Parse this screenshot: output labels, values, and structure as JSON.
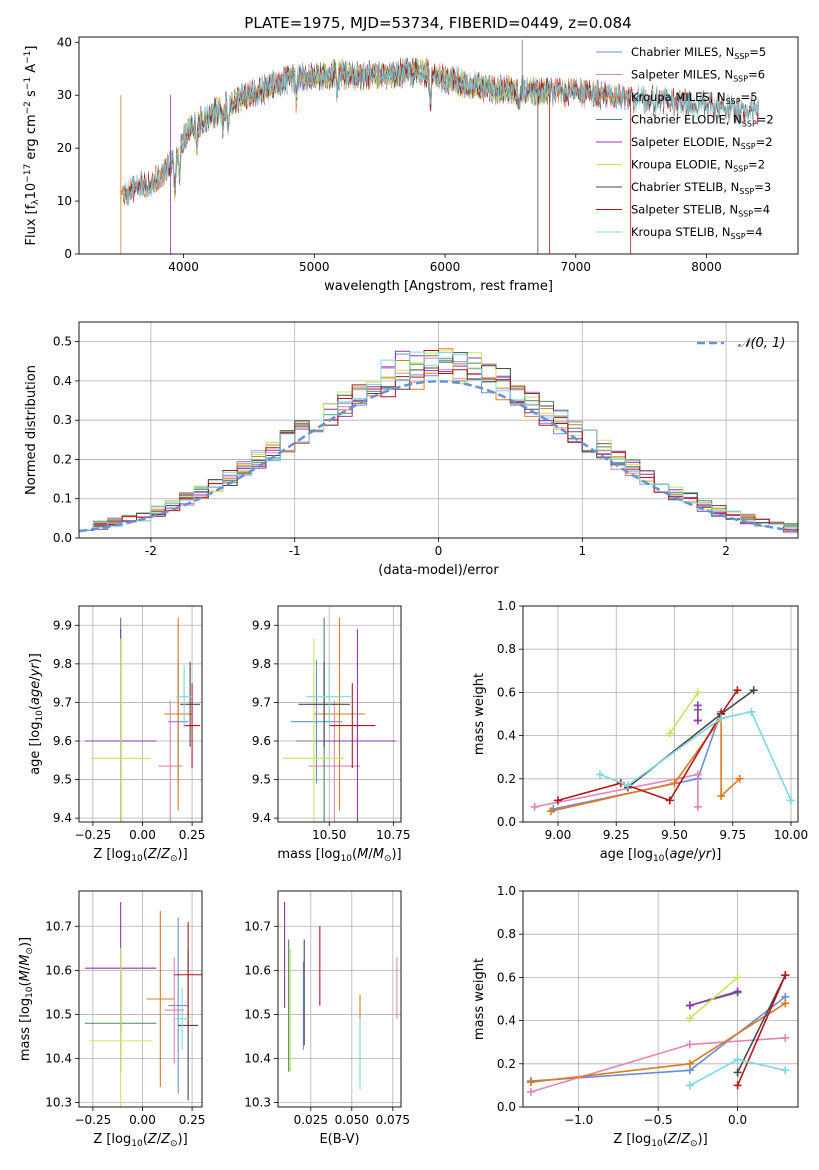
{
  "figure": {
    "title": "PLATE=1975, MJD=53734, FIBERID=0449, z=0.084"
  },
  "colors": {
    "Chabrier MILES": "#6b8fd6",
    "Salpeter MILES": "#e184b8",
    "Kroupa MILES": "#e0781e",
    "Chabrier ELODIE": "#4f8a58",
    "Salpeter ELODIE": "#8e37b0",
    "Kroupa ELODIE": "#c9e55c",
    "Chabrier STELIB": "#4a4a4a",
    "Salpeter STELIB": "#b4171b",
    "Kroupa STELIB": "#7dd8e0"
  },
  "chart_data": [
    {
      "id": "spectrum",
      "type": "line",
      "title": "PLATE=1975, MJD=53734, FIBERID=0449, z=0.084",
      "xlabel": "wavelength [Angstrom, rest frame]",
      "ylabel": "Flux [f_λ10^-17 erg cm^-2 s^-1 A^-1]",
      "xlim": [
        3200,
        8700
      ],
      "ylim": [
        0,
        41
      ],
      "xticks": [
        4000,
        5000,
        6000,
        7000,
        8000
      ],
      "yticks": [
        0,
        10,
        20,
        30,
        40
      ],
      "grid": false,
      "legend_position": "top-right",
      "legend": [
        {
          "name": "Chabrier MILES",
          "nssp": "5"
        },
        {
          "name": "Salpeter MILES",
          "nssp": "6"
        },
        {
          "name": "Kroupa MILES",
          "nssp": "5"
        },
        {
          "name": "Chabrier ELODIE",
          "nssp": "2"
        },
        {
          "name": "Salpeter ELODIE",
          "nssp": "2"
        },
        {
          "name": "Kroupa ELODIE",
          "nssp": "2"
        },
        {
          "name": "Chabrier STELIB",
          "nssp": "3"
        },
        {
          "name": "Salpeter STELIB",
          "nssp": "4"
        },
        {
          "name": "Kroupa STELIB",
          "nssp": "4"
        }
      ],
      "continuum": {
        "wavelength": [
          3500,
          3700,
          3850,
          3950,
          4050,
          4200,
          4400,
          4600,
          4800,
          5000,
          5200,
          5400,
          5600,
          5800,
          6000,
          6200,
          6400,
          6600,
          6800,
          7000,
          7200,
          7400,
          7600,
          7800,
          8000,
          8200,
          8400
        ],
        "flux": [
          11,
          13,
          15,
          19,
          24,
          26,
          29,
          31,
          33,
          33.5,
          34,
          33.5,
          34,
          34.5,
          33,
          32,
          31,
          31,
          30.5,
          30.5,
          30,
          29.5,
          29,
          28.5,
          28,
          27.5,
          27
        ]
      }
    },
    {
      "id": "residual-histogram",
      "type": "bar",
      "xlabel": "(data-model)/error",
      "ylabel": "Normed distribution",
      "xlim": [
        -2.5,
        2.5
      ],
      "ylim": [
        0,
        0.55
      ],
      "xticks": [
        -2,
        -1,
        0,
        1,
        2
      ],
      "yticks": [
        0.0,
        0.1,
        0.2,
        0.3,
        0.4,
        0.5
      ],
      "grid": true,
      "legend_position": "top-right",
      "reference_label": "N(0,1)",
      "bin_width": 0.1
    },
    {
      "id": "age-vs-Z",
      "type": "scatter",
      "xlabel": "Z [log10(Z/Z⊙)]",
      "ylabel": "age [log10(age/yr)]",
      "xlim": [
        -0.32,
        0.3
      ],
      "ylim": [
        9.39,
        9.95
      ],
      "xticks": [
        -0.25,
        0.0,
        0.25
      ],
      "xticklabels": [
        "−0.25",
        "0.00",
        "0.25"
      ],
      "yticks": [
        9.4,
        9.5,
        9.6,
        9.7,
        9.8,
        9.9
      ],
      "grid": true,
      "points": [
        {
          "model": "Chabrier MILES",
          "x": 0.18,
          "xerr": 0.05,
          "y": 9.65,
          "yerr": 0.16
        },
        {
          "model": "Salpeter MILES",
          "x": 0.14,
          "xerr": 0.06,
          "y": 9.535,
          "yerr": 0.17
        },
        {
          "model": "Kroupa MILES",
          "x": 0.18,
          "xerr": 0.07,
          "y": 9.67,
          "yerr": 0.25
        },
        {
          "model": "Chabrier ELODIE",
          "x": -0.11,
          "xerr": 0.17,
          "y": 9.6,
          "yerr": 0.32
        },
        {
          "model": "Salpeter ELODIE",
          "x": -0.11,
          "xerr": 0.18,
          "y": 9.6,
          "yerr": 0.29
        },
        {
          "model": "Kroupa ELODIE",
          "x": -0.11,
          "xerr": 0.15,
          "y": 9.555,
          "yerr": 0.31
        },
        {
          "model": "Chabrier STELIB",
          "x": 0.24,
          "xerr": 0.05,
          "y": 9.695,
          "yerr": 0.11
        },
        {
          "model": "Salpeter STELIB",
          "x": 0.25,
          "xerr": 0.04,
          "y": 9.64,
          "yerr": 0.11
        },
        {
          "model": "Kroupa STELIB",
          "x": 0.21,
          "xerr": 0.04,
          "y": 9.715,
          "yerr": 0.08
        }
      ]
    },
    {
      "id": "age-vs-mass",
      "type": "scatter",
      "xlabel": "mass [log10(M/M⊙)]",
      "ylabel": "",
      "xlim": [
        10.3,
        10.78
      ],
      "ylim": [
        9.39,
        9.95
      ],
      "xticks": [
        10.5,
        10.75
      ],
      "xticklabels": [
        "10.50",
        "10.75"
      ],
      "yticks": [
        9.4,
        9.5,
        9.6,
        9.7,
        9.8,
        9.9
      ],
      "grid": true,
      "points": [
        {
          "model": "Chabrier MILES",
          "x": 10.45,
          "xerr": 0.1,
          "y": 9.65,
          "yerr": 0.16
        },
        {
          "model": "Salpeter MILES",
          "x": 10.52,
          "xerr": 0.1,
          "y": 9.535,
          "yerr": 0.17
        },
        {
          "model": "Kroupa MILES",
          "x": 10.54,
          "xerr": 0.1,
          "y": 9.67,
          "yerr": 0.25
        },
        {
          "model": "Chabrier ELODIE",
          "x": 10.48,
          "xerr": 0.11,
          "y": 9.6,
          "yerr": 0.32
        },
        {
          "model": "Salpeter ELODIE",
          "x": 10.61,
          "xerr": 0.15,
          "y": 9.6,
          "yerr": 0.29
        },
        {
          "model": "Kroupa ELODIE",
          "x": 10.44,
          "xerr": 0.12,
          "y": 9.555,
          "yerr": 0.31
        },
        {
          "model": "Chabrier STELIB",
          "x": 10.48,
          "xerr": 0.1,
          "y": 9.695,
          "yerr": 0.11
        },
        {
          "model": "Salpeter STELIB",
          "x": 10.59,
          "xerr": 0.09,
          "y": 9.64,
          "yerr": 0.11
        },
        {
          "model": "Kroupa STELIB",
          "x": 10.5,
          "xerr": 0.09,
          "y": 9.715,
          "yerr": 0.08
        }
      ]
    },
    {
      "id": "mass-weight-vs-age",
      "type": "line",
      "xlabel": "age [log10(age/yr)]",
      "ylabel": "mass weight",
      "xlim": [
        8.85,
        10.03
      ],
      "ylim": [
        0,
        1
      ],
      "xticks": [
        9.0,
        9.25,
        9.5,
        9.75,
        10.0
      ],
      "xticklabels": [
        "9.00",
        "9.25",
        "9.50",
        "9.75",
        "10.00"
      ],
      "yticks": [
        0.0,
        0.2,
        0.4,
        0.6,
        0.8,
        1.0
      ],
      "grid": true,
      "series": [
        {
          "model": "Chabrier MILES",
          "x": [
            8.98,
            9.6,
            9.7
          ],
          "y": [
            0.06,
            0.2,
            0.51
          ]
        },
        {
          "model": "Salpeter MILES",
          "x": [
            8.9,
            9.6,
            9.6
          ],
          "y": [
            0.07,
            0.22,
            0.07
          ]
        },
        {
          "model": "Kroupa MILES",
          "x": [
            8.97,
            9.5,
            9.7,
            9.7,
            9.78
          ],
          "y": [
            0.05,
            0.18,
            0.48,
            0.12,
            0.2
          ]
        },
        {
          "model": "Chabrier ELODIE",
          "x": [
            9.6,
            9.6
          ],
          "y": [
            0.47,
            0.52
          ]
        },
        {
          "model": "Salpeter ELODIE",
          "x": [
            9.6,
            9.6
          ],
          "y": [
            0.47,
            0.54
          ]
        },
        {
          "model": "Kroupa ELODIE",
          "x": [
            9.48,
            9.6
          ],
          "y": [
            0.41,
            0.6
          ]
        },
        {
          "model": "Chabrier STELIB",
          "x": [
            9.3,
            9.7,
            9.84
          ],
          "y": [
            0.16,
            0.5,
            0.61
          ]
        },
        {
          "model": "Salpeter STELIB",
          "x": [
            9.0,
            9.27,
            9.48,
            9.7,
            9.77
          ],
          "y": [
            0.1,
            0.18,
            0.1,
            0.5,
            0.61
          ]
        },
        {
          "model": "Kroupa STELIB",
          "x": [
            9.18,
            9.3,
            9.7,
            9.83,
            10.0
          ],
          "y": [
            0.22,
            0.17,
            0.48,
            0.51,
            0.1
          ]
        }
      ]
    },
    {
      "id": "mass-vs-Z",
      "type": "scatter",
      "xlabel": "Z [log10(Z/Z⊙)]",
      "ylabel": "mass [log10(M/M⊙)]",
      "xlim": [
        -0.32,
        0.3
      ],
      "ylim": [
        10.29,
        10.78
      ],
      "xticks": [
        -0.25,
        0.0,
        0.25
      ],
      "xticklabels": [
        "−0.25",
        "0.00",
        "0.25"
      ],
      "yticks": [
        10.3,
        10.4,
        10.5,
        10.6,
        10.7
      ],
      "grid": true,
      "points": [
        {
          "model": "Chabrier MILES",
          "x": 0.18,
          "xerr": 0.05,
          "y": 10.52,
          "yerr": 0.2
        },
        {
          "model": "Salpeter MILES",
          "x": 0.16,
          "xerr": 0.05,
          "y": 10.51,
          "yerr": 0.12
        },
        {
          "model": "Kroupa MILES",
          "x": 0.09,
          "xerr": 0.07,
          "y": 10.535,
          "yerr": 0.2
        },
        {
          "model": "Chabrier ELODIE",
          "x": -0.11,
          "xerr": 0.18,
          "y": 10.48,
          "yerr": 0.11
        },
        {
          "model": "Salpeter ELODIE",
          "x": -0.11,
          "xerr": 0.18,
          "y": 10.605,
          "yerr": 0.15
        },
        {
          "model": "Kroupa ELODIE",
          "x": -0.11,
          "xerr": 0.16,
          "y": 10.44,
          "yerr": 0.21
        },
        {
          "model": "Chabrier STELIB",
          "x": 0.23,
          "xerr": 0.05,
          "y": 10.475,
          "yerr": 0.17
        },
        {
          "model": "Salpeter STELIB",
          "x": 0.23,
          "xerr": 0.07,
          "y": 10.59,
          "yerr": 0.12
        },
        {
          "model": "Kroupa STELIB",
          "x": 0.2,
          "xerr": 0.04,
          "y": 10.49,
          "yerr": 0.07
        }
      ]
    },
    {
      "id": "mass-vs-ebv",
      "type": "scatter",
      "xlabel": "E(B-V)",
      "ylabel": "",
      "xlim": [
        0.005,
        0.08
      ],
      "ylim": [
        10.29,
        10.78
      ],
      "xticks": [
        0.025,
        0.05,
        0.075
      ],
      "xticklabels": [
        "0.025",
        "0.050",
        "0.075"
      ],
      "yticks": [
        10.3,
        10.4,
        10.5,
        10.6,
        10.7
      ],
      "grid": true,
      "points": [
        {
          "model": "Chabrier MILES",
          "x": 0.0205,
          "y": 10.52,
          "yerr": 0.1
        },
        {
          "model": "Salpeter MILES",
          "x": 0.0775,
          "y": 10.56,
          "yerr": 0.07
        },
        {
          "model": "Kroupa MILES",
          "x": 0.055,
          "y": 10.445,
          "yerr": 0.1
        },
        {
          "model": "Chabrier ELODIE",
          "x": 0.0115,
          "y": 10.52,
          "yerr": 0.15
        },
        {
          "model": "Salpeter ELODIE",
          "x": 0.009,
          "y": 10.635,
          "yerr": 0.12
        },
        {
          "model": "Kroupa ELODIE",
          "x": 0.0125,
          "y": 10.51,
          "yerr": 0.14
        },
        {
          "model": "Chabrier STELIB",
          "x": 0.021,
          "y": 10.55,
          "yerr": 0.12
        },
        {
          "model": "Salpeter STELIB",
          "x": 0.0305,
          "y": 10.61,
          "yerr": 0.09
        },
        {
          "model": "Kroupa STELIB",
          "x": 0.055,
          "y": 10.41,
          "yerr": 0.08
        }
      ]
    },
    {
      "id": "mass-weight-vs-Z",
      "type": "line",
      "xlabel": "Z [log10(Z/Z⊙)]",
      "ylabel": "mass weight",
      "xlim": [
        -1.35,
        0.38
      ],
      "ylim": [
        0,
        1
      ],
      "xticks": [
        -1.0,
        -0.5,
        0.0
      ],
      "xticklabels": [
        "−1.0",
        "−0.5",
        "0.0"
      ],
      "yticks": [
        0.0,
        0.2,
        0.4,
        0.6,
        0.8,
        1.0
      ],
      "grid": true,
      "series": [
        {
          "model": "Chabrier MILES",
          "x": [
            -1.3,
            -0.3,
            0.3
          ],
          "y": [
            0.12,
            0.17,
            0.51
          ]
        },
        {
          "model": "Salpeter MILES",
          "x": [
            -1.3,
            -0.3,
            0.3
          ],
          "y": [
            0.07,
            0.29,
            0.32
          ]
        },
        {
          "model": "Kroupa MILES",
          "x": [
            -1.3,
            -0.3,
            0.3
          ],
          "y": [
            0.115,
            0.2,
            0.48
          ]
        },
        {
          "model": "Chabrier ELODIE",
          "x": [
            -0.3,
            0.0
          ],
          "y": [
            0.47,
            0.53
          ]
        },
        {
          "model": "Salpeter ELODIE",
          "x": [
            -0.3,
            0.0
          ],
          "y": [
            0.47,
            0.535
          ]
        },
        {
          "model": "Kroupa ELODIE",
          "x": [
            -0.3,
            0.0
          ],
          "y": [
            0.41,
            0.6
          ]
        },
        {
          "model": "Chabrier STELIB",
          "x": [
            0.0,
            0.3
          ],
          "y": [
            0.16,
            0.61
          ]
        },
        {
          "model": "Salpeter STELIB",
          "x": [
            0.0,
            0.3
          ],
          "y": [
            0.1,
            0.61
          ]
        },
        {
          "model": "Kroupa STELIB",
          "x": [
            -0.3,
            0.0,
            0.3
          ],
          "y": [
            0.1,
            0.22,
            0.17
          ]
        }
      ]
    }
  ]
}
